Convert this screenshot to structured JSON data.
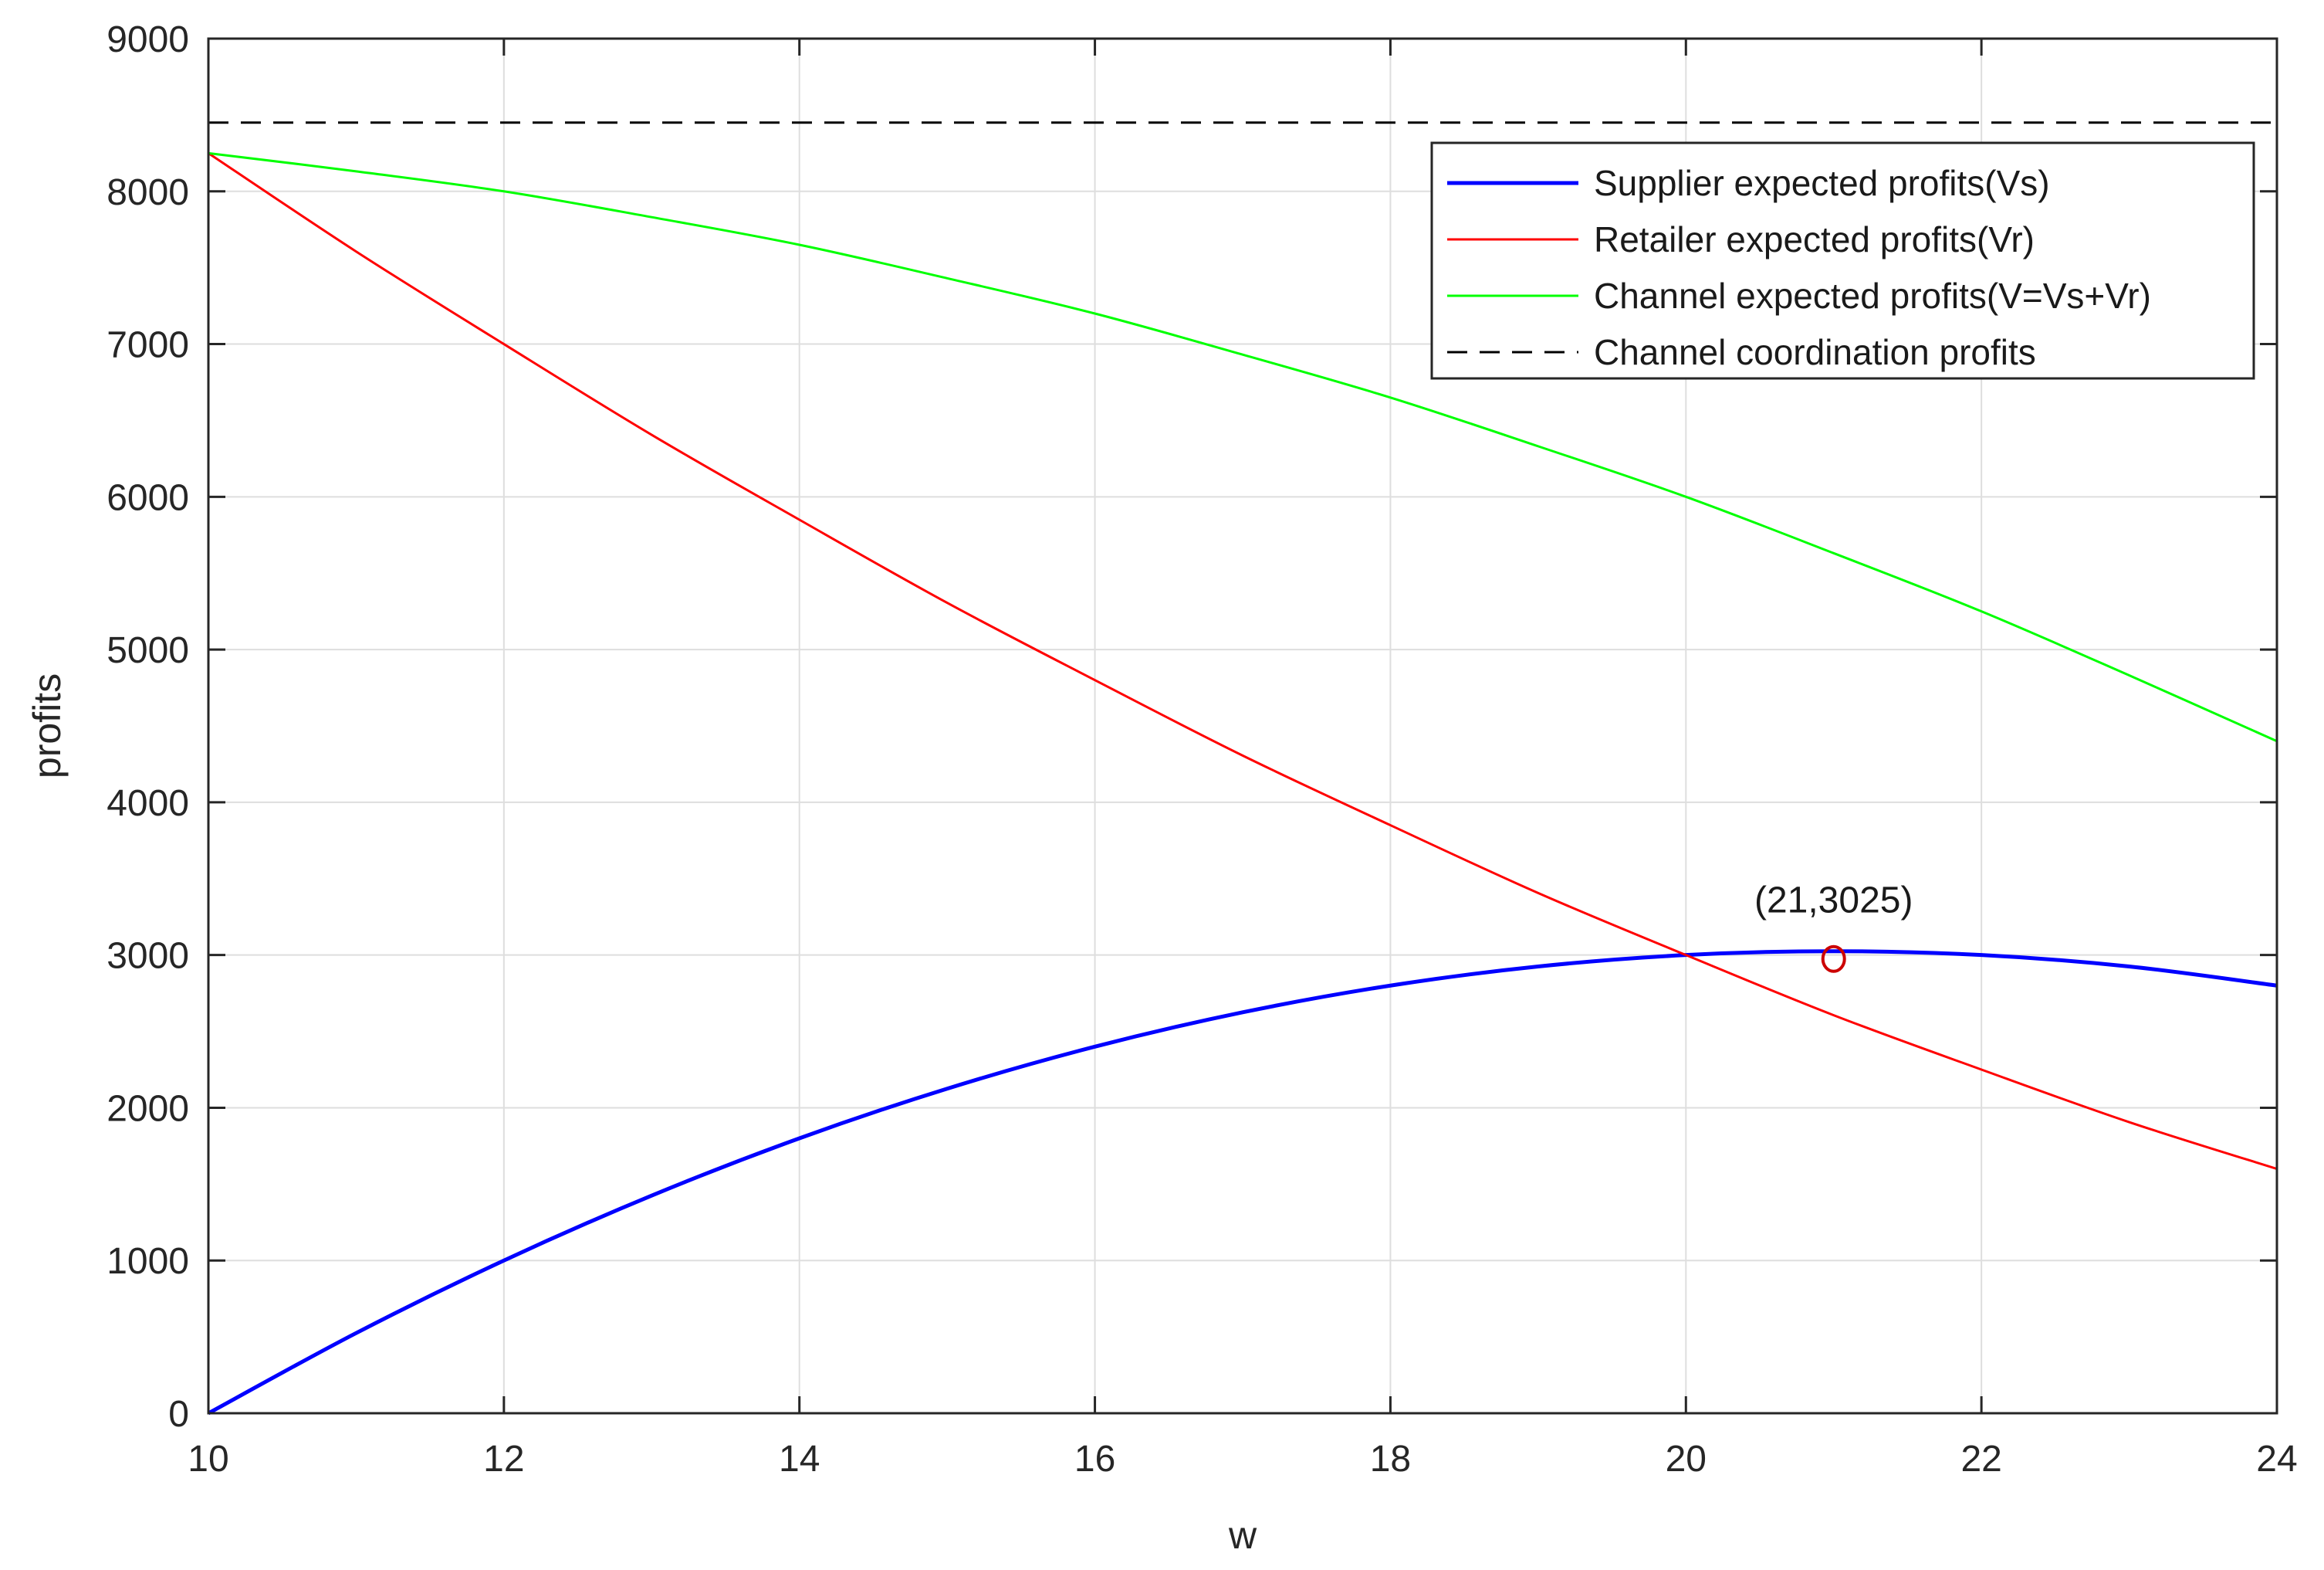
{
  "chart_data": {
    "type": "line",
    "xlabel": "w",
    "ylabel": "profits",
    "xlim": [
      10,
      24
    ],
    "ylim": [
      0,
      9000
    ],
    "xticks": [
      10,
      12,
      14,
      16,
      18,
      20,
      22,
      24
    ],
    "yticks": [
      0,
      1000,
      2000,
      3000,
      4000,
      5000,
      6000,
      7000,
      8000,
      9000
    ],
    "grid": true,
    "legend_position": "top-right",
    "series": [
      {
        "name": "Supplier expected profits(Vs)",
        "color": "#0000ff",
        "style": "solid",
        "x": [
          10,
          11,
          12,
          13,
          14,
          15,
          16,
          17,
          18,
          19,
          20,
          21,
          22,
          23,
          24
        ],
        "y": [
          0,
          525,
          1000,
          1425,
          1800,
          2125,
          2400,
          2625,
          2800,
          2925,
          3000,
          3025,
          3000,
          2925,
          2800
        ]
      },
      {
        "name": "Retailer expected profits(Vr)",
        "color": "#ff0000",
        "style": "solid",
        "x": [
          10,
          11,
          12,
          13,
          14,
          15,
          16,
          17,
          18,
          19,
          20,
          21,
          22,
          23,
          24
        ],
        "y": [
          8250,
          7606,
          7000,
          6406,
          5850,
          5306,
          4800,
          4306,
          3850,
          3406,
          3000,
          2606,
          2250,
          1906,
          1600
        ]
      },
      {
        "name": "Channel expected profits(V=Vs+Vr)",
        "color": "#00ff00",
        "style": "solid",
        "x": [
          10,
          11,
          12,
          13,
          14,
          15,
          16,
          17,
          18,
          19,
          20,
          21,
          22,
          23,
          24
        ],
        "y": [
          8250,
          8131,
          8000,
          7831,
          7650,
          7431,
          7200,
          6931,
          6650,
          6331,
          6000,
          5631,
          5250,
          4831,
          4400
        ]
      },
      {
        "name": "Channel coordination profits",
        "color": "#000000",
        "style": "dashed",
        "x": [
          10,
          24
        ],
        "y": [
          8450,
          8450
        ]
      }
    ],
    "annotations": [
      {
        "text": "(21,3025)",
        "x": 21,
        "y": 3025,
        "marker": "o",
        "marker_color": "#cc0000"
      }
    ]
  }
}
